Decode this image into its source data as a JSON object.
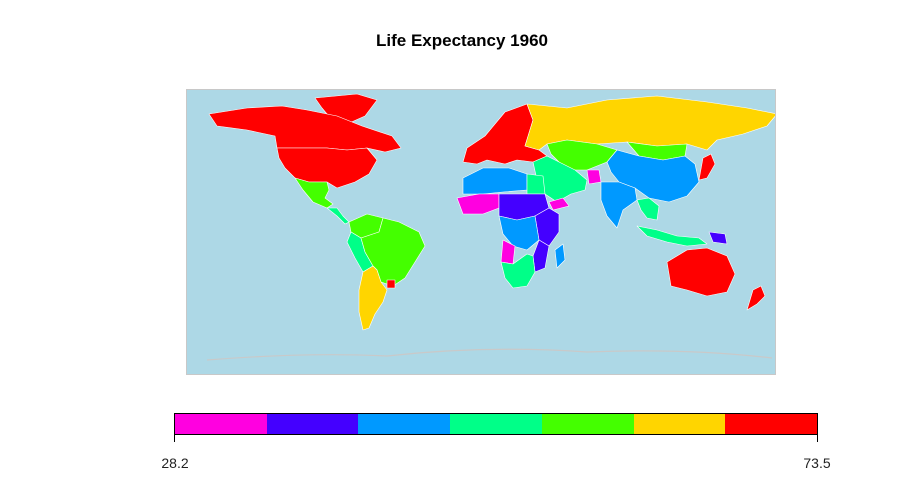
{
  "title": "Life Expectancy 1960",
  "colors": {
    "ocean": "#add8e6",
    "border": "#ffffff",
    "graticule": "#c9c9c9"
  },
  "legend": {
    "min_label": "28.2",
    "max_label": "73.5",
    "min": 28.2,
    "max": 73.5,
    "bins": [
      {
        "color": "#ff00e0",
        "from": 28.2,
        "to": 34.67
      },
      {
        "color": "#4400ff",
        "from": 34.67,
        "to": 41.14
      },
      {
        "color": "#0099ff",
        "from": 41.14,
        "to": 47.61
      },
      {
        "color": "#00ff88",
        "from": 47.61,
        "to": 54.09
      },
      {
        "color": "#44ff00",
        "from": 54.09,
        "to": 60.56
      },
      {
        "color": "#ffd500",
        "from": 60.56,
        "to": 67.03
      },
      {
        "color": "#ff0000",
        "from": 67.03,
        "to": 73.5
      }
    ]
  },
  "regions": [
    {
      "name": "Canada",
      "color": "#ff0000"
    },
    {
      "name": "United States",
      "color": "#ff0000"
    },
    {
      "name": "Greenland",
      "color": "#ff0000"
    },
    {
      "name": "Mexico",
      "color": "#44ff00"
    },
    {
      "name": "Central America",
      "color": "#00ff88"
    },
    {
      "name": "Brazil",
      "color": "#44ff00"
    },
    {
      "name": "Argentina",
      "color": "#ffd500"
    },
    {
      "name": "Uruguay",
      "color": "#ff0000"
    },
    {
      "name": "Peru",
      "color": "#00ff88"
    },
    {
      "name": "Colombia",
      "color": "#44ff00"
    },
    {
      "name": "Europe",
      "color": "#ff0000"
    },
    {
      "name": "Russia",
      "color": "#ffd500"
    },
    {
      "name": "Kazakhstan",
      "color": "#44ff00"
    },
    {
      "name": "China",
      "color": "#0099ff"
    },
    {
      "name": "Mongolia",
      "color": "#44ff00"
    },
    {
      "name": "India",
      "color": "#0099ff"
    },
    {
      "name": "Afghanistan",
      "color": "#ff00e0"
    },
    {
      "name": "Middle East",
      "color": "#00ff88"
    },
    {
      "name": "Yemen",
      "color": "#ff00e0"
    },
    {
      "name": "Japan",
      "color": "#ff0000"
    },
    {
      "name": "Southeast Asia",
      "color": "#00ff88"
    },
    {
      "name": "Indonesia",
      "color": "#00ff88"
    },
    {
      "name": "Papua New Guinea",
      "color": "#4400ff"
    },
    {
      "name": "Australia",
      "color": "#ff0000"
    },
    {
      "name": "New Zealand",
      "color": "#ff0000"
    },
    {
      "name": "North Africa",
      "color": "#0099ff"
    },
    {
      "name": "Egypt",
      "color": "#00ff88"
    },
    {
      "name": "West Africa",
      "color": "#4400ff"
    },
    {
      "name": "Sahel",
      "color": "#ff00e0"
    },
    {
      "name": "Central Africa",
      "color": "#4400ff"
    },
    {
      "name": "East Africa",
      "color": "#0099ff"
    },
    {
      "name": "Angola",
      "color": "#ff00e0"
    },
    {
      "name": "Southern Africa",
      "color": "#00ff88"
    },
    {
      "name": "Madagascar",
      "color": "#0099ff"
    },
    {
      "name": "Mozambique",
      "color": "#4400ff"
    }
  ]
}
